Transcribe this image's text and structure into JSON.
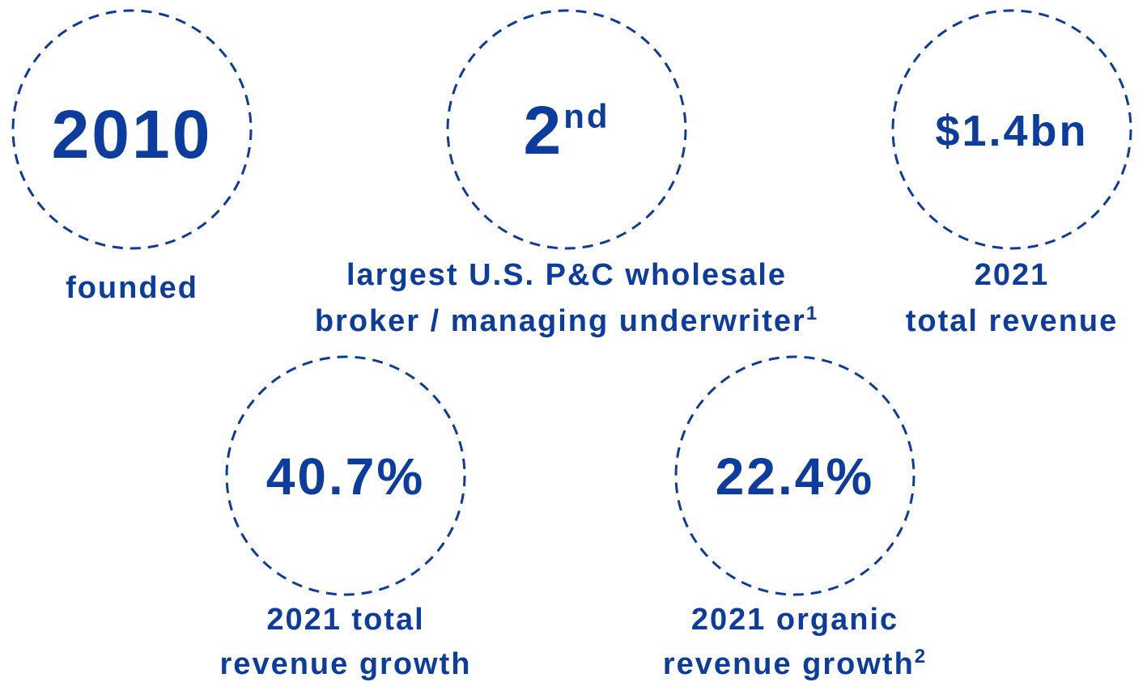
{
  "stats": [
    {
      "value": "2010",
      "caption": [
        "founded"
      ]
    },
    {
      "value": "2",
      "value_sup": "nd",
      "caption": [
        "largest U.S. P&C wholesale",
        "broker / managing underwriter"
      ],
      "caption_sup": "1"
    },
    {
      "value": "$1.4bn",
      "caption": [
        "2021",
        "total revenue"
      ]
    },
    {
      "value": "40.7%",
      "caption": [
        "2021 total",
        "revenue growth"
      ]
    },
    {
      "value": "22.4%",
      "caption": [
        "2021 organic",
        "revenue growth"
      ],
      "caption_sup": "2"
    }
  ]
}
